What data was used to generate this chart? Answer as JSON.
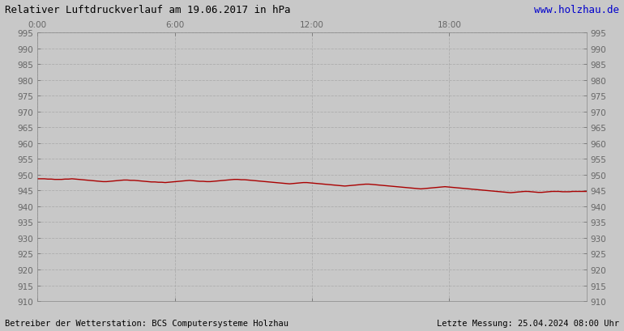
{
  "title": "Relativer Luftdruckverlauf am 19.06.2017 in hPa",
  "url_text": "www.holzhau.de",
  "footer_left": "Betreiber der Wetterstation: BCS Computersysteme Holzhau",
  "footer_right": "Letzte Messung: 25.04.2024 08:00 Uhr",
  "ylim": [
    910,
    995
  ],
  "ytick_step": 5,
  "xlim": [
    0,
    1440
  ],
  "xticks": [
    0,
    360,
    720,
    1080
  ],
  "xtick_labels": [
    "0:00",
    "6:00",
    "12:00",
    "18:00"
  ],
  "bg_color": "#c8c8c8",
  "plot_bg_color": "#c8c8c8",
  "line_color": "#aa0000",
  "grid_color": "#aaaaaa",
  "title_color": "#000000",
  "url_color": "#0000cc",
  "footer_color": "#000000",
  "tick_color": "#666666",
  "pressure_values": [
    948.7,
    948.7,
    948.7,
    948.6,
    948.6,
    948.5,
    948.5,
    948.5,
    948.6,
    948.6,
    948.7,
    948.6,
    948.5,
    948.4,
    948.3,
    948.2,
    948.1,
    948.0,
    947.9,
    947.8,
    947.8,
    947.9,
    948.0,
    948.1,
    948.2,
    948.3,
    948.3,
    948.2,
    948.2,
    948.1,
    948.0,
    947.9,
    947.8,
    947.7,
    947.7,
    947.6,
    947.6,
    947.5,
    947.6,
    947.7,
    947.8,
    947.9,
    948.0,
    948.1,
    948.2,
    948.1,
    948.0,
    947.9,
    947.9,
    947.8,
    947.8,
    947.9,
    948.0,
    948.1,
    948.2,
    948.3,
    948.4,
    948.5,
    948.5,
    948.4,
    948.4,
    948.3,
    948.2,
    948.1,
    948.0,
    947.9,
    947.8,
    947.7,
    947.6,
    947.5,
    947.4,
    947.3,
    947.2,
    947.1,
    947.2,
    947.3,
    947.4,
    947.5,
    947.5,
    947.4,
    947.3,
    947.2,
    947.1,
    947.0,
    946.9,
    946.8,
    946.7,
    946.6,
    946.5,
    946.4,
    946.5,
    946.6,
    946.7,
    946.8,
    946.9,
    947.0,
    947.0,
    946.9,
    946.8,
    946.7,
    946.6,
    946.5,
    946.4,
    946.3,
    946.2,
    946.1,
    946.0,
    945.9,
    945.8,
    945.7,
    945.6,
    945.5,
    945.6,
    945.7,
    945.8,
    945.9,
    946.0,
    946.1,
    946.2,
    946.1,
    946.0,
    945.9,
    945.8,
    945.7,
    945.6,
    945.5,
    945.4,
    945.3,
    945.2,
    945.1,
    945.0,
    944.9,
    944.8,
    944.7,
    944.6,
    944.5,
    944.4,
    944.3,
    944.4,
    944.5,
    944.6,
    944.7,
    944.7,
    944.6,
    944.5,
    944.4,
    944.4,
    944.5,
    944.6,
    944.7,
    944.7,
    944.7,
    944.6,
    944.6,
    944.6,
    944.7,
    944.7,
    944.7,
    944.7,
    944.7
  ]
}
